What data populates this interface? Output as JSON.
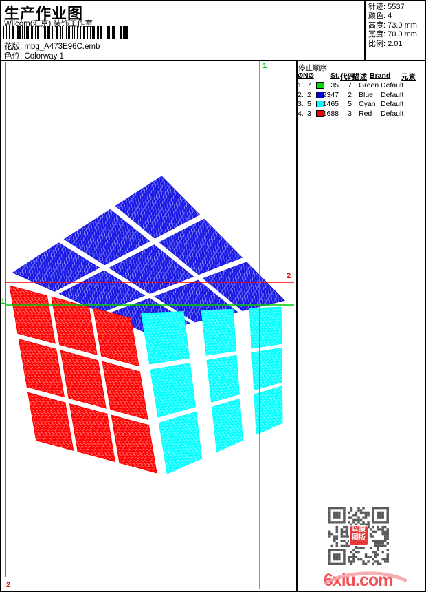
{
  "header": {
    "title": "生产作业图",
    "studio": "Wilcom(汇京) 装饰工作室",
    "pattern_label": "花版:",
    "pattern_value": "mbg_A473E96C.emb",
    "colorway_label": "色位:",
    "colorway_value": "Colorway 1"
  },
  "stats": {
    "items": [
      {
        "label": "针迹:",
        "value": "5537"
      },
      {
        "label": "颜色:",
        "value": "4"
      },
      {
        "label": "高度:",
        "value": "73.0 mm"
      },
      {
        "label": "宽度:",
        "value": "70.0 mm"
      },
      {
        "label": "比例:",
        "value": "2.01"
      }
    ]
  },
  "stop_sequence": {
    "title": "停止顺序:",
    "columns": [
      "Ø",
      "NØ",
      "St.",
      "代码",
      "描述",
      "Brand",
      "元素"
    ],
    "rows": [
      {
        "seq": "1.",
        "needle": "7",
        "color": "#00DD00",
        "stitches": "35",
        "code": "7",
        "description": "Green",
        "brand": "Default"
      },
      {
        "seq": "2.",
        "needle": "2",
        "color": "#0000DD",
        "stitches": "2347",
        "code": "2",
        "description": "Blue",
        "brand": "Default"
      },
      {
        "seq": "3.",
        "needle": "5",
        "color": "#00FFFF",
        "stitches": "1465",
        "code": "5",
        "description": "Cyan",
        "brand": "Default"
      },
      {
        "seq": "4.",
        "needle": "3",
        "color": "#FF0000",
        "stitches": "1688",
        "code": "3",
        "description": "Red",
        "brand": "Default"
      }
    ]
  },
  "design": {
    "face_colors": {
      "top": "#1A1AE6",
      "left": "#FF0000",
      "right": "#00FFFF"
    },
    "guide_colors": {
      "green": "#00CC00",
      "red": "#FF0000"
    },
    "marker_green": "1",
    "marker_red": "2"
  },
  "watermark": {
    "site": "6xiu.com",
    "site_color": "#EF5156",
    "swoosh_color": "#F5A0A6",
    "qr_color": "#595959",
    "stamp_rows": [
      "以搜",
      "图版"
    ]
  }
}
